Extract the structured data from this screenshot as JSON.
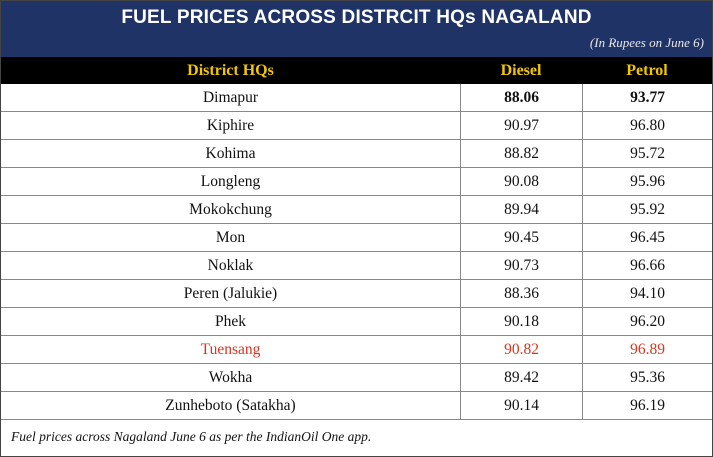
{
  "title": "FUEL PRICES ACROSS DISTRCIT HQs NAGALAND",
  "subtitle": "(In Rupees on June 6)",
  "columns": [
    "District HQs",
    "Diesel",
    "Petrol"
  ],
  "footnote": "Fuel prices across Nagaland June 6 as per the IndianOil One app.",
  "colors": {
    "header_bg": "#1f3366",
    "column_header_bg": "#000000",
    "column_header_text": "#f2c700",
    "highlight_text": "#d8341e"
  },
  "chart_data": {
    "type": "table",
    "title": "FUEL PRICES ACROSS DISTRCIT HQs NAGALAND",
    "subtitle": "(In Rupees on June 6)",
    "columns": [
      "District HQs",
      "Diesel",
      "Petrol"
    ],
    "rows": [
      {
        "district": "Dimapur",
        "diesel": "88.06",
        "petrol": "93.77",
        "bold": true,
        "highlight": false
      },
      {
        "district": "Kiphire",
        "diesel": "90.97",
        "petrol": "96.80",
        "bold": false,
        "highlight": false
      },
      {
        "district": "Kohima",
        "diesel": "88.82",
        "petrol": "95.72",
        "bold": false,
        "highlight": false
      },
      {
        "district": "Longleng",
        "diesel": "90.08",
        "petrol": "95.96",
        "bold": false,
        "highlight": false
      },
      {
        "district": "Mokokchung",
        "diesel": "89.94",
        "petrol": "95.92",
        "bold": false,
        "highlight": false
      },
      {
        "district": "Mon",
        "diesel": "90.45",
        "petrol": "96.45",
        "bold": false,
        "highlight": false
      },
      {
        "district": "Noklak",
        "diesel": "90.73",
        "petrol": "96.66",
        "bold": false,
        "highlight": false
      },
      {
        "district": "Peren (Jalukie)",
        "diesel": "88.36",
        "petrol": "94.10",
        "bold": false,
        "highlight": false
      },
      {
        "district": "Phek",
        "diesel": "90.18",
        "petrol": "96.20",
        "bold": false,
        "highlight": false
      },
      {
        "district": "Tuensang",
        "diesel": "90.82",
        "petrol": "96.89",
        "bold": false,
        "highlight": true
      },
      {
        "district": "Wokha",
        "diesel": "89.42",
        "petrol": "95.36",
        "bold": false,
        "highlight": false
      },
      {
        "district": "Zunheboto (Satakha)",
        "diesel": "90.14",
        "petrol": "96.19",
        "bold": false,
        "highlight": false
      }
    ]
  }
}
